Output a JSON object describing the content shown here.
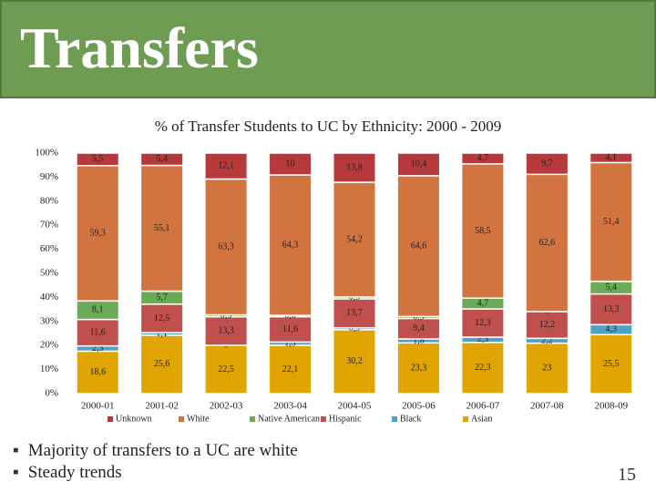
{
  "header": {
    "title": "Transfers"
  },
  "chart_data": {
    "type": "bar",
    "stacking": "percent",
    "title": "% of Transfer Students to UC by Ethnicity: 2000 - 2009",
    "categories": [
      "2000-01",
      "2001-02",
      "2002-03",
      "2003-04",
      "2004-05",
      "2005-06",
      "2006-07",
      "2007-08",
      "2008-09"
    ],
    "series": [
      {
        "name": "Asian",
        "color": "#e0a500",
        "values": [
          18.6,
          25.6,
          22.5,
          22.1,
          30.2,
          23.3,
          22.3,
          23,
          25.5
        ],
        "value_labels": [
          "18,6",
          "25,6",
          "22,5",
          "22,1",
          "30,2",
          "23,3",
          "22,3",
          "23",
          "25,5"
        ]
      },
      {
        "name": "Black",
        "color": "#4ba3c7",
        "values": [
          2.3,
          1.1,
          0,
          1.5,
          0.9,
          1.8,
          2.3,
          2.2,
          4.3
        ],
        "value_labels": [
          "2,3",
          "1,1",
          "0",
          "1,5",
          "0,9",
          "1,8",
          "2,3",
          "2,2",
          "4,3"
        ]
      },
      {
        "name": "Hispanic",
        "color": "#c0504d",
        "values": [
          11.6,
          12.5,
          13.3,
          11.6,
          13.7,
          9.4,
          12.3,
          12.2,
          13.3
        ],
        "value_labels": [
          "11,6",
          "12,5",
          "13,3",
          "11,6",
          "13,7",
          "9,4",
          "12,3",
          "12,2",
          "13,3"
        ]
      },
      {
        "name": "Native American",
        "color": "#6aab55",
        "values": [
          8.1,
          5.7,
          0.9,
          0.6,
          0.9,
          0.9,
          4.7,
          0,
          5.4
        ],
        "value_labels": [
          "8,1",
          "5,7",
          "0,9",
          "0,6",
          "0,9",
          "0,9",
          "4,7",
          "0",
          "5,4"
        ]
      },
      {
        "name": "White",
        "color": "#d2743f",
        "values": [
          59.3,
          55.1,
          63.3,
          64.3,
          54.2,
          64.6,
          58.5,
          62.6,
          51.4
        ],
        "value_labels": [
          "59,3",
          "55,1",
          "63,3",
          "64,3",
          "54,2",
          "64,6",
          "58,5",
          "62,6",
          "51,4"
        ]
      },
      {
        "name": "Unknown",
        "color": "#b6393b",
        "values": [
          5.5,
          5.4,
          12.1,
          10,
          13.8,
          10.4,
          4.7,
          9.7,
          4.1
        ],
        "value_labels": [
          "5,5",
          "5,4",
          "12,1",
          "10",
          "13,8",
          "10,4",
          "4,7",
          "9,7",
          "4,1"
        ]
      }
    ],
    "ylim": [
      0,
      100
    ],
    "yticks": [
      {
        "value": 0,
        "label": "0%"
      },
      {
        "value": 10,
        "label": "10%"
      },
      {
        "value": 20,
        "label": "20%"
      },
      {
        "value": 30,
        "label": "30%"
      },
      {
        "value": 40,
        "label": "40%"
      },
      {
        "value": 50,
        "label": "50%"
      },
      {
        "value": 60,
        "label": "60%"
      },
      {
        "value": 70,
        "label": "70%"
      },
      {
        "value": 80,
        "label": "80%"
      },
      {
        "value": 90,
        "label": "90%"
      },
      {
        "value": 100,
        "label": "100%"
      }
    ],
    "legend": "bottom",
    "legend_order": "reverse"
  },
  "bullets": [
    "Majority of transfers to a UC are white",
    "Steady trends"
  ],
  "page_number": "15"
}
